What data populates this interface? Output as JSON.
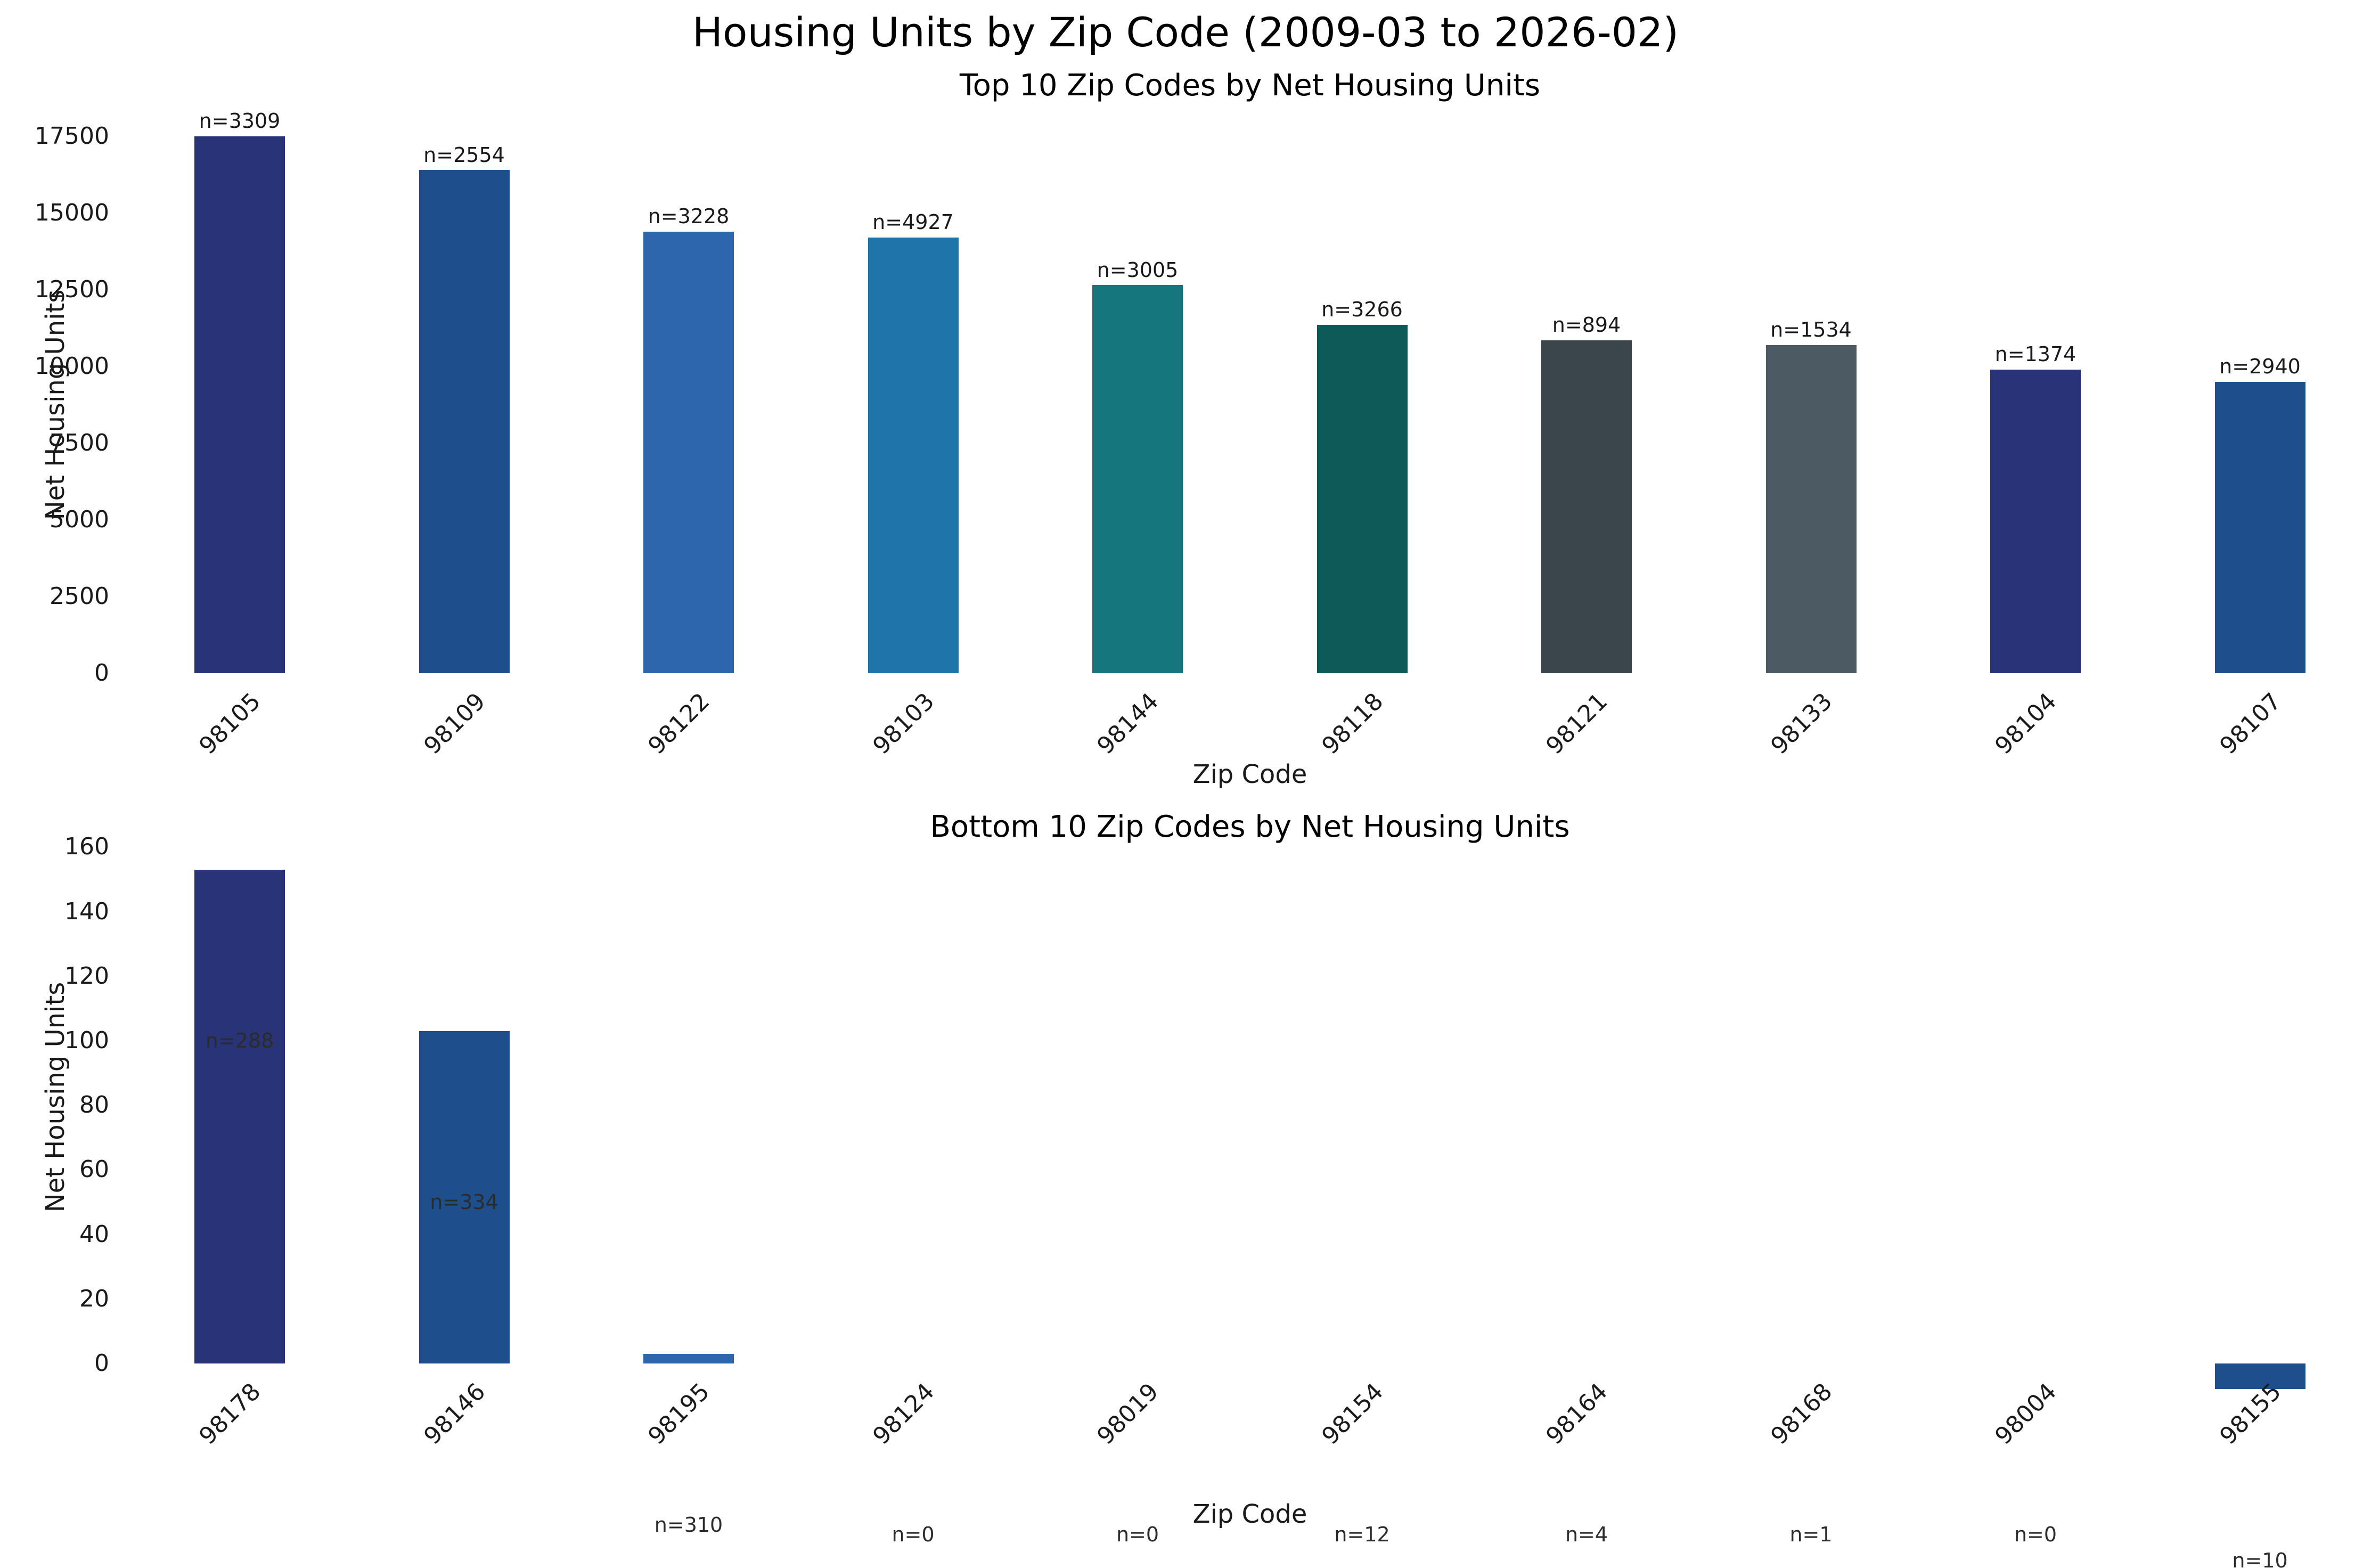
{
  "figure": {
    "title": "Housing Units by Zip Code (2009-03 to 2026-02)",
    "background": "#ffffff"
  },
  "chart_data": [
    {
      "type": "bar",
      "title": "Top 10 Zip Codes by Net Housing Units",
      "xlabel": "Zip Code",
      "ylabel": "Net Housing Units",
      "categories": [
        "98105",
        "98109",
        "98122",
        "98103",
        "98144",
        "98118",
        "98121",
        "98133",
        "98104",
        "98107"
      ],
      "values": [
        17500,
        16400,
        14400,
        14200,
        12650,
        11350,
        10850,
        10700,
        9900,
        9500
      ],
      "bar_labels": [
        "n=3309",
        "n=2554",
        "n=3228",
        "n=4927",
        "n=3005",
        "n=3266",
        "n=894",
        "n=1534",
        "n=1374",
        "n=2940"
      ],
      "bar_colors": [
        "#293377",
        "#1f4e8c",
        "#2d66ad",
        "#1f74a8",
        "#15767d",
        "#0e5a59",
        "#3a454c",
        "#4c5b63",
        "#293377",
        "#1f4e8c"
      ],
      "yticks": [
        0,
        2500,
        5000,
        7500,
        10000,
        12500,
        15000,
        17500
      ],
      "ylim": [
        0,
        18500
      ],
      "grid": false,
      "legend": null
    },
    {
      "type": "bar",
      "title": "Bottom 10 Zip Codes by Net Housing Units",
      "xlabel": "Zip Code",
      "ylabel": "Net Housing Units",
      "categories": [
        "98178",
        "98146",
        "98195",
        "98124",
        "98019",
        "98154",
        "98164",
        "98168",
        "98004",
        "98155"
      ],
      "values": [
        153,
        103,
        3,
        0,
        0,
        0,
        0,
        0,
        0,
        -8
      ],
      "bar_labels": [
        "n=288",
        "n=334",
        "n=310",
        "n=0",
        "n=0",
        "n=12",
        "n=4",
        "n=1",
        "n=0",
        "n=10"
      ],
      "bar_colors": [
        "#293377",
        "#1f4e8c",
        "#2d66ad",
        "#1f74a8",
        "#15767d",
        "#0e5a59",
        "#3a454c",
        "#4c5b63",
        "#293377",
        "#1f4e8c"
      ],
      "yticks": [
        0,
        20,
        40,
        60,
        80,
        100,
        120,
        140,
        160
      ],
      "ylim": [
        -65,
        163
      ],
      "grid": false,
      "legend": null
    }
  ]
}
